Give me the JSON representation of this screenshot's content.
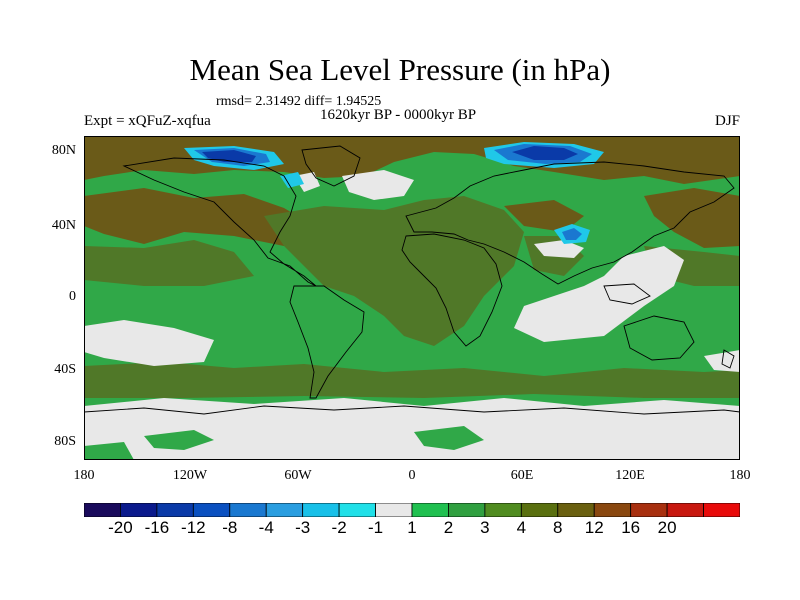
{
  "title": "Mean Sea Level Pressure (in hPa)",
  "stats_text": "rmsd= 2.31492 diff= 1.94525",
  "left_label": "Expt = xQFuZ-xqfua",
  "center_label": "1620kyr BP - 0000kyr BP",
  "right_label": "DJF",
  "lat_ticks": [
    "80N",
    "40N",
    "0",
    "40S",
    "80S"
  ],
  "lon_ticks": [
    "180",
    "120W",
    "60W",
    "0",
    "60E",
    "120E",
    "180"
  ],
  "colorbar": {
    "colors": [
      "#1a0a5c",
      "#0a1a8c",
      "#0a3aa8",
      "#0a50c0",
      "#1a78d0",
      "#2a9ee0",
      "#18c0e8",
      "#20e0e8",
      "#e8e8e8",
      "#20c050",
      "#30a040",
      "#508c20",
      "#5a7010",
      "#6a6010",
      "#8a4810",
      "#a83010",
      "#c81810",
      "#e80a0a"
    ],
    "labels": [
      "-20",
      "-16",
      "-12",
      "-8",
      "-4",
      "-3",
      "-2",
      "-1",
      "1",
      "2",
      "3",
      "4",
      "8",
      "12",
      "16",
      "20"
    ]
  },
  "fields": {
    "background_color": "#30a848",
    "brown_color": "#6a5a18",
    "olive_color": "#507828",
    "white_color": "#e8e8e8",
    "blue_dark": "#0a3aa8",
    "blue_mid": "#1a78d0",
    "blue_light": "#20c8e8"
  }
}
